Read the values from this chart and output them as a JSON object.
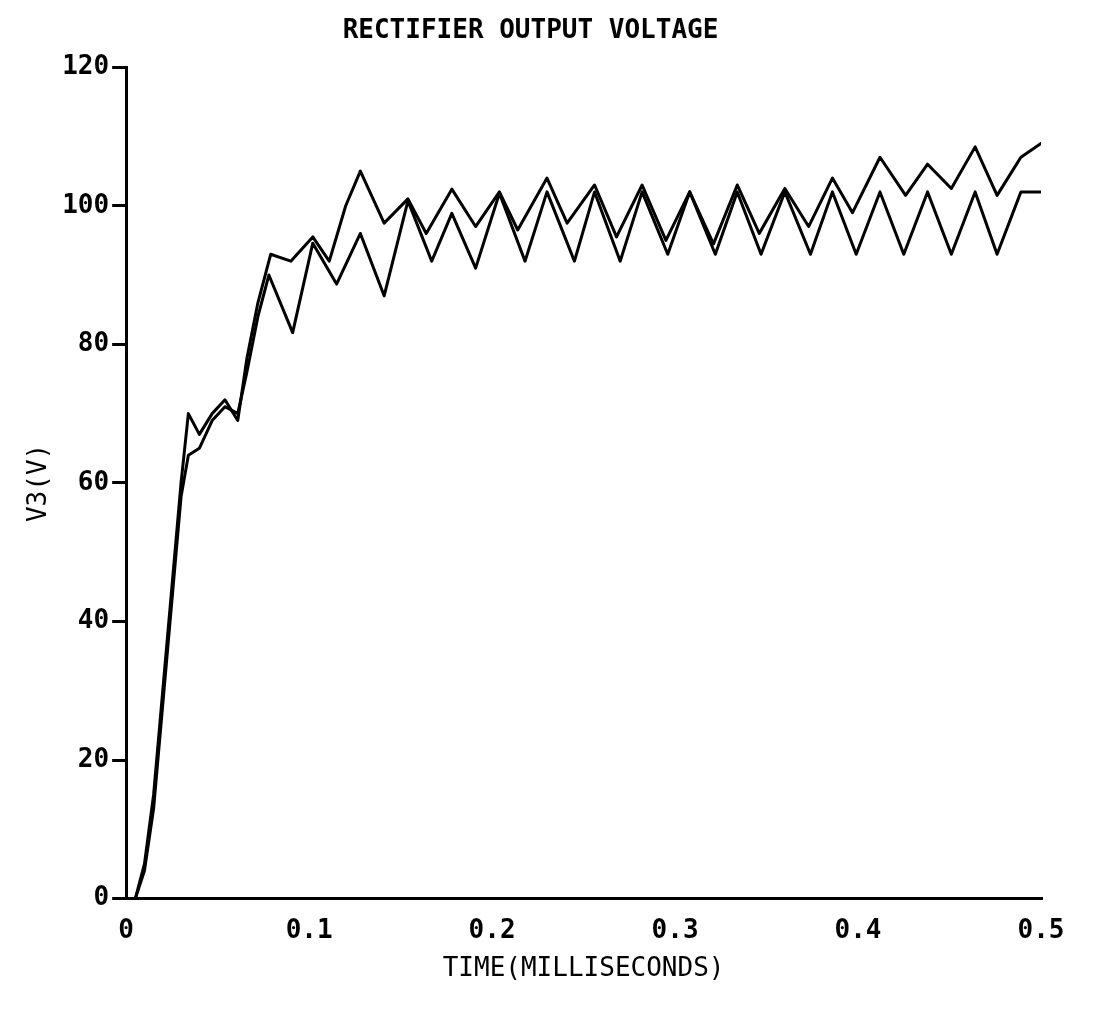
{
  "chart_data": {
    "type": "line",
    "title": "RECTIFIER OUTPUT VOLTAGE",
    "xlabel": "TIME(MILLISECONDS)",
    "ylabel": "V3(V)",
    "xlim": [
      0,
      0.5
    ],
    "ylim": [
      0,
      120
    ],
    "xticks": [
      0,
      {
        "value": 0.1,
        "label": "0.1"
      },
      {
        "value": 0.2,
        "label": "0.2"
      },
      {
        "value": 0.3,
        "label": "0.3"
      },
      {
        "value": 0.4,
        "label": "0.4"
      },
      {
        "value": 0.5,
        "label": "0.5"
      }
    ],
    "yticks": [
      0,
      20,
      40,
      60,
      80,
      100,
      120
    ],
    "grid": false,
    "legend": false,
    "marker": "none",
    "line_style": "solid",
    "series": [
      {
        "color": "#000000",
        "x": [
          0,
          0.005,
          0.01,
          0.015,
          0.02,
          0.025,
          0.03,
          0.034,
          0.04,
          0.047,
          0.054,
          0.061,
          0.066,
          0.072,
          0.079,
          0.09,
          0.102,
          0.111,
          0.12,
          0.128,
          0.141,
          0.154,
          0.164,
          0.178,
          0.191,
          0.204,
          0.214,
          0.23,
          0.241,
          0.256,
          0.268,
          0.282,
          0.295,
          0.308,
          0.321,
          0.334,
          0.346,
          0.36,
          0.373,
          0.386,
          0.397,
          0.412,
          0.426,
          0.438,
          0.451,
          0.464,
          0.476,
          0.489,
          0.5
        ],
        "values": [
          0,
          0,
          5,
          15,
          30,
          45,
          60,
          70,
          67,
          70,
          72,
          69,
          78,
          86,
          93,
          92,
          95.5,
          92,
          100,
          105,
          97.5,
          101,
          96,
          102.4,
          97,
          102,
          96.5,
          104,
          97.5,
          103,
          95.5,
          103,
          95,
          102,
          94.5,
          103,
          96,
          102.5,
          97,
          104,
          99,
          107,
          101.5,
          106,
          102.5,
          108.5,
          101.5,
          107,
          109
        ]
      },
      {
        "color": "#000000",
        "x": [
          0,
          0.005,
          0.01,
          0.015,
          0.02,
          0.025,
          0.03,
          0.034,
          0.04,
          0.047,
          0.054,
          0.061,
          0.066,
          0.072,
          0.078,
          0.091,
          0.102,
          0.115,
          0.128,
          0.141,
          0.154,
          0.167,
          0.178,
          0.191,
          0.204,
          0.218,
          0.23,
          0.245,
          0.256,
          0.27,
          0.282,
          0.296,
          0.308,
          0.322,
          0.334,
          0.347,
          0.36,
          0.374,
          0.386,
          0.399,
          0.412,
          0.425,
          0.438,
          0.451,
          0.464,
          0.476,
          0.489,
          0.5
        ],
        "values": [
          0,
          0,
          4,
          13,
          28,
          43,
          58,
          64,
          65,
          69,
          71,
          70,
          76,
          84,
          90,
          81.7,
          94.6,
          88.7,
          96,
          87,
          100.7,
          92,
          98.9,
          91,
          101.8,
          92,
          102,
          92,
          102,
          92,
          102,
          93,
          102,
          93,
          102,
          93,
          102,
          93,
          102,
          93,
          102,
          93,
          102,
          93,
          102,
          93,
          102,
          102
        ]
      }
    ]
  }
}
